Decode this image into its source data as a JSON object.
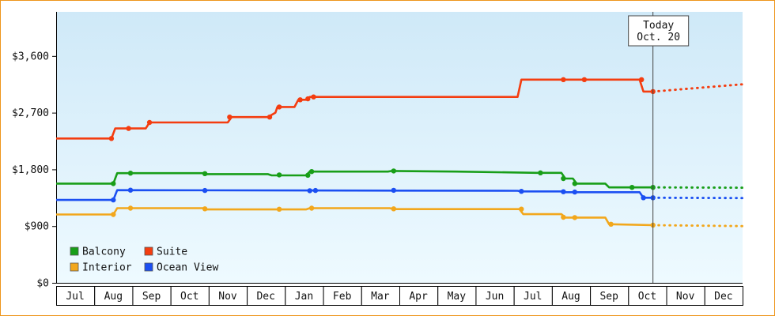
{
  "frame": {
    "border_color": "#ee951b",
    "plot_bg_top": "#cfe9f8",
    "plot_bg_bottom": "#eefaff"
  },
  "chart_data": {
    "type": "line",
    "title": "",
    "x_months": [
      "Jul",
      "Aug",
      "Sep",
      "Oct",
      "Nov",
      "Dec",
      "Jan",
      "Feb",
      "Mar",
      "Apr",
      "May",
      "Jun",
      "Jul",
      "Aug",
      "Sep",
      "Oct",
      "Nov",
      "Dec"
    ],
    "ylim": [
      0,
      4300
    ],
    "grid": false,
    "legend_position": "bottom-left-inside",
    "yticks": [
      {
        "value": 0,
        "label": "$0"
      },
      {
        "value": 900,
        "label": "$900"
      },
      {
        "value": 1800,
        "label": "$1,800"
      },
      {
        "value": 2700,
        "label": "$2,700"
      },
      {
        "value": 3600,
        "label": "$3,600"
      }
    ],
    "today": {
      "line1": "Today",
      "line2": "Oct. 20",
      "x_month": 15.65
    },
    "series": [
      {
        "name": "Balcony",
        "color": "#189e18",
        "solid": [
          [
            0,
            1575
          ],
          [
            1.5,
            1575
          ],
          [
            1.6,
            1740
          ],
          [
            3.85,
            1740
          ],
          [
            3.95,
            1725
          ],
          [
            5.55,
            1725
          ],
          [
            5.65,
            1705
          ],
          [
            6.55,
            1705
          ],
          [
            6.65,
            1765
          ],
          [
            8.7,
            1765
          ],
          [
            8.8,
            1775
          ],
          [
            10.5,
            1765
          ],
          [
            12.6,
            1745
          ],
          [
            13.25,
            1745
          ],
          [
            13.35,
            1655
          ],
          [
            13.55,
            1655
          ],
          [
            13.65,
            1575
          ],
          [
            14.4,
            1575
          ],
          [
            14.5,
            1515
          ],
          [
            15.65,
            1515
          ]
        ],
        "markers": [
          [
            1.5,
            1575
          ],
          [
            1.95,
            1740
          ],
          [
            3.9,
            1733
          ],
          [
            5.85,
            1712
          ],
          [
            6.6,
            1708
          ],
          [
            6.7,
            1765
          ],
          [
            8.85,
            1775
          ],
          [
            12.7,
            1745
          ],
          [
            13.3,
            1655
          ],
          [
            13.6,
            1575
          ],
          [
            15.1,
            1515
          ],
          [
            15.65,
            1515
          ]
        ],
        "dotted": [
          [
            15.65,
            1515
          ],
          [
            18,
            1510
          ]
        ]
      },
      {
        "name": "Suite",
        "color": "#f43d10",
        "solid": [
          [
            0,
            2290
          ],
          [
            1.45,
            2290
          ],
          [
            1.55,
            2450
          ],
          [
            2.35,
            2450
          ],
          [
            2.45,
            2545
          ],
          [
            4.5,
            2545
          ],
          [
            4.6,
            2630
          ],
          [
            5.55,
            2630
          ],
          [
            5.75,
            2700
          ],
          [
            5.8,
            2790
          ],
          [
            6.25,
            2790
          ],
          [
            6.35,
            2905
          ],
          [
            6.55,
            2905
          ],
          [
            6.65,
            2950
          ],
          [
            12.1,
            2950
          ],
          [
            12.2,
            3225
          ],
          [
            15.3,
            3225
          ],
          [
            15.4,
            3035
          ],
          [
            15.65,
            3035
          ]
        ],
        "markers": [
          [
            1.45,
            2290
          ],
          [
            1.9,
            2450
          ],
          [
            2.45,
            2545
          ],
          [
            4.55,
            2630
          ],
          [
            5.6,
            2630
          ],
          [
            5.85,
            2790
          ],
          [
            6.4,
            2905
          ],
          [
            6.6,
            2920
          ],
          [
            6.75,
            2950
          ],
          [
            13.3,
            3225
          ],
          [
            13.85,
            3225
          ],
          [
            15.35,
            3225
          ],
          [
            15.65,
            3035
          ]
        ],
        "dotted": [
          [
            15.65,
            3035
          ],
          [
            18,
            3150
          ]
        ]
      },
      {
        "name": "Interior",
        "color": "#f2a71c",
        "solid": [
          [
            0,
            1085
          ],
          [
            1.5,
            1085
          ],
          [
            1.6,
            1185
          ],
          [
            3.85,
            1185
          ],
          [
            3.95,
            1165
          ],
          [
            6.55,
            1165
          ],
          [
            6.65,
            1185
          ],
          [
            8.75,
            1185
          ],
          [
            8.85,
            1170
          ],
          [
            12.15,
            1170
          ],
          [
            12.25,
            1090
          ],
          [
            13.25,
            1090
          ],
          [
            13.35,
            1035
          ],
          [
            14.4,
            1035
          ],
          [
            14.5,
            930
          ],
          [
            15.65,
            915
          ]
        ],
        "markers": [
          [
            1.5,
            1085
          ],
          [
            1.95,
            1185
          ],
          [
            3.9,
            1175
          ],
          [
            5.85,
            1168
          ],
          [
            6.7,
            1185
          ],
          [
            8.85,
            1175
          ],
          [
            12.2,
            1170
          ],
          [
            13.3,
            1040
          ],
          [
            13.6,
            1035
          ],
          [
            14.55,
            930
          ],
          [
            15.65,
            915
          ]
        ],
        "dotted": [
          [
            15.65,
            915
          ],
          [
            18,
            900
          ]
        ]
      },
      {
        "name": "Ocean View",
        "color": "#1b4ff2",
        "solid": [
          [
            0,
            1315
          ],
          [
            1.5,
            1315
          ],
          [
            1.6,
            1470
          ],
          [
            12.1,
            1460
          ],
          [
            12.2,
            1450
          ],
          [
            13.25,
            1450
          ],
          [
            13.35,
            1438
          ],
          [
            15.3,
            1438
          ],
          [
            15.4,
            1350
          ],
          [
            15.65,
            1350
          ]
        ],
        "markers": [
          [
            1.5,
            1315
          ],
          [
            1.95,
            1470
          ],
          [
            3.9,
            1465
          ],
          [
            6.65,
            1462
          ],
          [
            6.8,
            1465
          ],
          [
            8.85,
            1468
          ],
          [
            12.2,
            1452
          ],
          [
            13.3,
            1445
          ],
          [
            13.6,
            1440
          ],
          [
            15.4,
            1350
          ],
          [
            15.65,
            1350
          ]
        ],
        "dotted": [
          [
            15.65,
            1350
          ],
          [
            18,
            1345
          ]
        ]
      }
    ]
  }
}
